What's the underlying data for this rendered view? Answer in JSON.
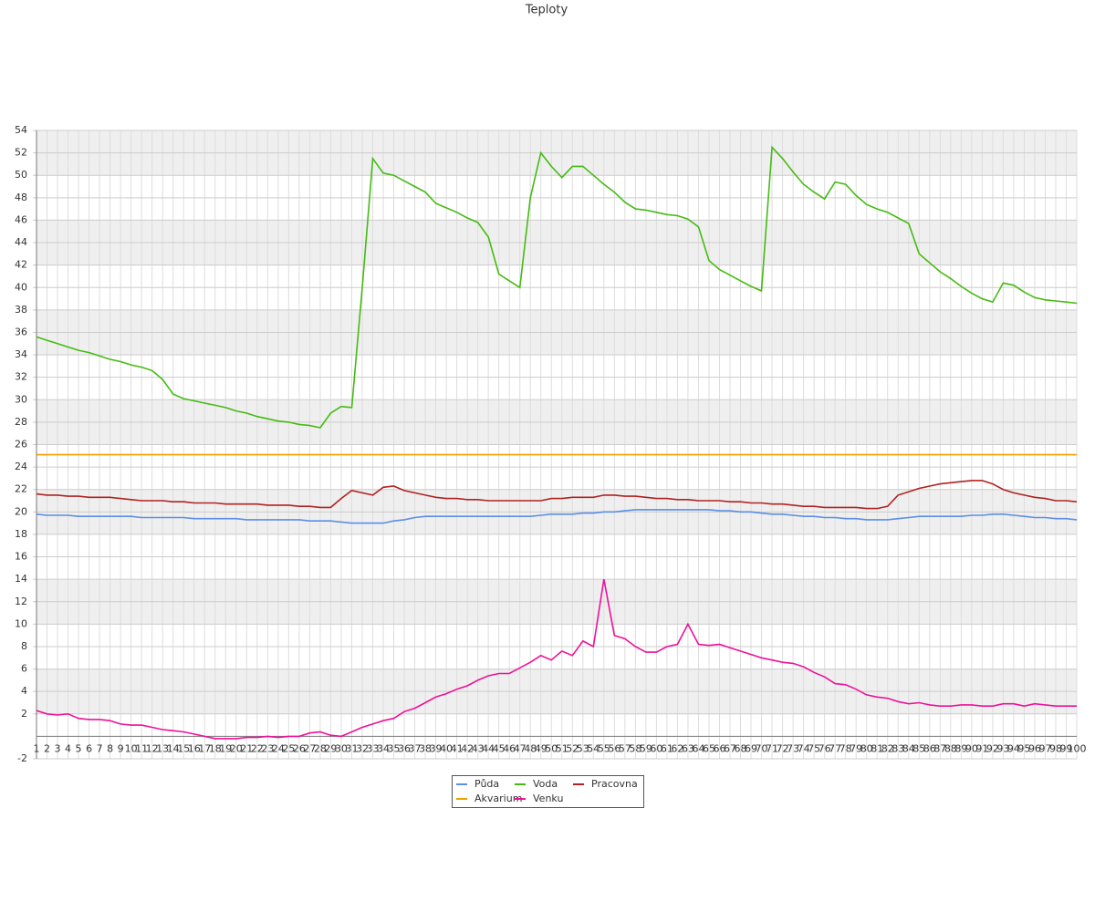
{
  "chart_data": {
    "type": "line",
    "title": "Teploty",
    "x": [
      1,
      2,
      3,
      4,
      5,
      6,
      7,
      8,
      9,
      10,
      11,
      12,
      13,
      14,
      15,
      16,
      17,
      18,
      19,
      20,
      21,
      22,
      23,
      24,
      25,
      26,
      27,
      28,
      29,
      30,
      31,
      32,
      33,
      34,
      35,
      36,
      37,
      38,
      39,
      40,
      41,
      42,
      43,
      44,
      45,
      46,
      47,
      48,
      49,
      50,
      51,
      52,
      53,
      54,
      55,
      56,
      57,
      58,
      59,
      60,
      61,
      62,
      63,
      64,
      65,
      66,
      67,
      68,
      69,
      70,
      71,
      72,
      73,
      74,
      75,
      76,
      77,
      78,
      79,
      80,
      81,
      82,
      83,
      84,
      85,
      86,
      87,
      88,
      89,
      90,
      91,
      92,
      93,
      94,
      95,
      96,
      97,
      98,
      99,
      100
    ],
    "xlim": [
      1,
      100
    ],
    "ylim": [
      -2,
      54
    ],
    "yticks": [
      -2,
      2,
      4,
      6,
      8,
      10,
      12,
      14,
      16,
      18,
      20,
      22,
      24,
      26,
      28,
      30,
      32,
      34,
      36,
      38,
      40,
      42,
      44,
      46,
      48,
      50,
      52,
      54
    ],
    "grid": true,
    "legend": "bottom",
    "series": [
      {
        "name": "Půda",
        "color": "#5b8ee6",
        "values": [
          19.8,
          19.7,
          19.7,
          19.7,
          19.6,
          19.6,
          19.6,
          19.6,
          19.6,
          19.6,
          19.5,
          19.5,
          19.5,
          19.5,
          19.5,
          19.4,
          19.4,
          19.4,
          19.4,
          19.4,
          19.3,
          19.3,
          19.3,
          19.3,
          19.3,
          19.3,
          19.2,
          19.2,
          19.2,
          19.1,
          19.0,
          19.0,
          19.0,
          19.0,
          19.2,
          19.3,
          19.5,
          19.6,
          19.6,
          19.6,
          19.6,
          19.6,
          19.6,
          19.6,
          19.6,
          19.6,
          19.6,
          19.6,
          19.7,
          19.8,
          19.8,
          19.8,
          19.9,
          19.9,
          20.0,
          20.0,
          20.1,
          20.2,
          20.2,
          20.2,
          20.2,
          20.2,
          20.2,
          20.2,
          20.2,
          20.1,
          20.1,
          20.0,
          20.0,
          19.9,
          19.8,
          19.8,
          19.7,
          19.6,
          19.6,
          19.5,
          19.5,
          19.4,
          19.4,
          19.3,
          19.3,
          19.3,
          19.4,
          19.5,
          19.6,
          19.6,
          19.6,
          19.6,
          19.6,
          19.7,
          19.7,
          19.8,
          19.8,
          19.7,
          19.6,
          19.5,
          19.5,
          19.4,
          19.4,
          19.3
        ]
      },
      {
        "name": "Voda",
        "color": "#44bb11",
        "values": [
          35.6,
          35.3,
          35.0,
          34.7,
          34.4,
          34.2,
          33.9,
          33.6,
          33.4,
          33.1,
          32.9,
          32.6,
          31.8,
          30.5,
          30.1,
          29.9,
          29.7,
          29.5,
          29.3,
          29.0,
          28.8,
          28.5,
          28.3,
          28.1,
          28.0,
          27.8,
          27.7,
          27.5,
          28.8,
          29.4,
          29.3,
          40.0,
          51.5,
          50.2,
          50.0,
          49.5,
          49.0,
          48.5,
          47.5,
          47.1,
          46.7,
          46.2,
          45.8,
          44.5,
          41.2,
          40.6,
          40.0,
          48.0,
          52.0,
          50.8,
          49.8,
          50.8,
          50.8,
          50.0,
          49.2,
          48.5,
          47.6,
          47.0,
          46.9,
          46.7,
          46.5,
          46.4,
          46.1,
          45.4,
          42.4,
          41.6,
          41.1,
          40.6,
          40.1,
          39.7,
          52.5,
          51.5,
          50.3,
          49.2,
          48.5,
          47.9,
          49.4,
          49.2,
          48.2,
          47.4,
          47.0,
          46.7,
          46.2,
          45.7,
          43.0,
          42.2,
          41.4,
          40.8,
          40.1,
          39.5,
          39.0,
          38.7,
          40.4,
          40.2,
          39.6,
          39.1,
          38.9,
          38.8,
          38.7,
          38.6
        ]
      },
      {
        "name": "Pracovna",
        "color": "#b22222",
        "values": [
          21.6,
          21.5,
          21.5,
          21.4,
          21.4,
          21.3,
          21.3,
          21.3,
          21.2,
          21.1,
          21.0,
          21.0,
          21.0,
          20.9,
          20.9,
          20.8,
          20.8,
          20.8,
          20.7,
          20.7,
          20.7,
          20.7,
          20.6,
          20.6,
          20.6,
          20.5,
          20.5,
          20.4,
          20.4,
          21.2,
          21.9,
          21.7,
          21.5,
          22.2,
          22.3,
          21.9,
          21.7,
          21.5,
          21.3,
          21.2,
          21.2,
          21.1,
          21.1,
          21.0,
          21.0,
          21.0,
          21.0,
          21.0,
          21.0,
          21.2,
          21.2,
          21.3,
          21.3,
          21.3,
          21.5,
          21.5,
          21.4,
          21.4,
          21.3,
          21.2,
          21.2,
          21.1,
          21.1,
          21.0,
          21.0,
          21.0,
          20.9,
          20.9,
          20.8,
          20.8,
          20.7,
          20.7,
          20.6,
          20.5,
          20.5,
          20.4,
          20.4,
          20.4,
          20.4,
          20.3,
          20.3,
          20.5,
          21.5,
          21.8,
          22.1,
          22.3,
          22.5,
          22.6,
          22.7,
          22.8,
          22.8,
          22.5,
          22.0,
          21.7,
          21.5,
          21.3,
          21.2,
          21.0,
          21.0,
          20.9
        ]
      },
      {
        "name": "Akvarium",
        "color": "#f0a000",
        "values": [
          25.1,
          25.1,
          25.1,
          25.1,
          25.1,
          25.1,
          25.1,
          25.1,
          25.1,
          25.1,
          25.1,
          25.1,
          25.1,
          25.1,
          25.1,
          25.1,
          25.1,
          25.1,
          25.1,
          25.1,
          25.1,
          25.1,
          25.1,
          25.1,
          25.1,
          25.1,
          25.1,
          25.1,
          25.1,
          25.1,
          25.1,
          25.1,
          25.1,
          25.1,
          25.1,
          25.1,
          25.1,
          25.1,
          25.1,
          25.1,
          25.1,
          25.1,
          25.1,
          25.1,
          25.1,
          25.1,
          25.1,
          25.1,
          25.1,
          25.1,
          25.1,
          25.1,
          25.1,
          25.1,
          25.1,
          25.1,
          25.1,
          25.1,
          25.1,
          25.1,
          25.1,
          25.1,
          25.1,
          25.1,
          25.1,
          25.1,
          25.1,
          25.1,
          25.1,
          25.1,
          25.1,
          25.1,
          25.1,
          25.1,
          25.1,
          25.1,
          25.1,
          25.1,
          25.1,
          25.1,
          25.1,
          25.1,
          25.1,
          25.1,
          25.1,
          25.1,
          25.1,
          25.1,
          25.1,
          25.1,
          25.1,
          25.1,
          25.1,
          25.1,
          25.1,
          25.1,
          25.1,
          25.1,
          25.1,
          25.1
        ]
      },
      {
        "name": "Venku",
        "color": "#ee1199",
        "values": [
          2.3,
          2.0,
          1.9,
          2.0,
          1.6,
          1.5,
          1.5,
          1.4,
          1.1,
          1.0,
          1.0,
          0.8,
          0.6,
          0.5,
          0.4,
          0.2,
          0.0,
          -0.2,
          -0.2,
          -0.2,
          -0.1,
          -0.1,
          0.0,
          -0.1,
          0.0,
          0.0,
          0.3,
          0.4,
          0.1,
          0.0,
          0.4,
          0.8,
          1.1,
          1.4,
          1.6,
          2.2,
          2.5,
          3.0,
          3.5,
          3.8,
          4.2,
          4.5,
          5.0,
          5.4,
          5.6,
          5.6,
          6.1,
          6.6,
          7.2,
          6.8,
          7.6,
          7.2,
          8.5,
          8.0,
          14.0,
          9.0,
          8.7,
          8.0,
          7.5,
          7.5,
          8.0,
          8.2,
          10.0,
          8.2,
          8.1,
          8.2,
          7.9,
          7.6,
          7.3,
          7.0,
          6.8,
          6.6,
          6.5,
          6.2,
          5.7,
          5.3,
          4.7,
          4.6,
          4.2,
          3.7,
          3.5,
          3.4,
          3.1,
          2.9,
          3.0,
          2.8,
          2.7,
          2.7,
          2.8,
          2.8,
          2.7,
          2.7,
          2.9,
          2.9,
          2.7,
          2.9,
          2.8,
          2.7,
          2.7,
          2.7
        ]
      }
    ]
  }
}
